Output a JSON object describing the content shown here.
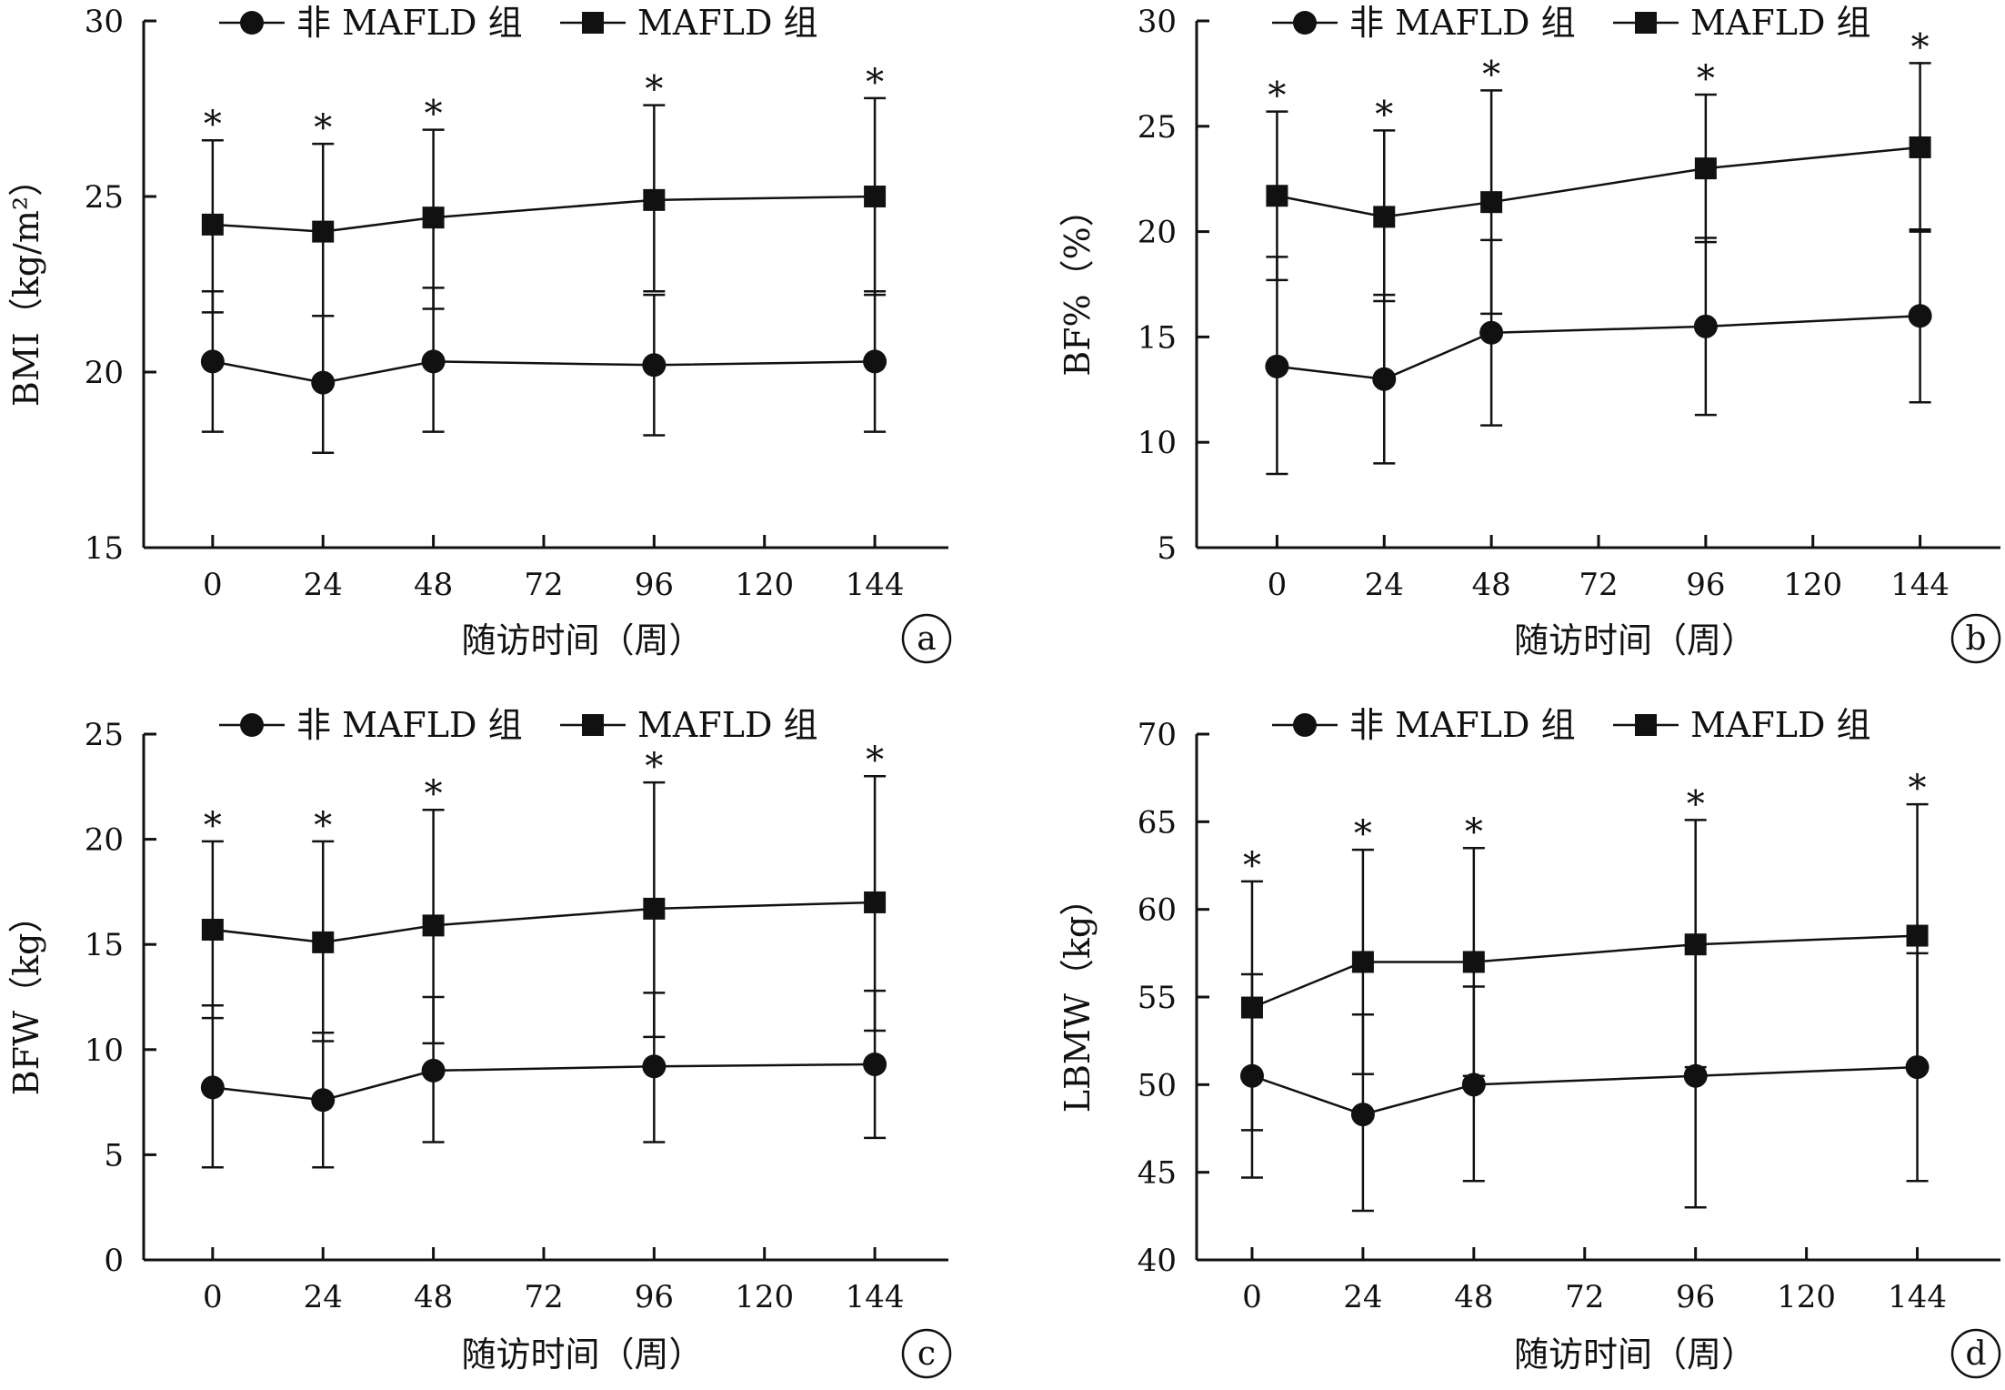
{
  "chart_data": [
    {
      "type": "line",
      "panel_label": "a",
      "xlabel": "随访时间（周）",
      "ylabel": "BMI（kg/m²）",
      "x_ticks": [
        0,
        24,
        48,
        72,
        96,
        120,
        144
      ],
      "xlim": [
        -15,
        160
      ],
      "ylim": [
        15,
        30
      ],
      "y_ticks": [
        15,
        20,
        25,
        30
      ],
      "x": [
        0,
        24,
        48,
        96,
        144
      ],
      "legend": [
        "非 MAFLD 组",
        "MAFLD 组"
      ],
      "series": [
        {
          "name": "非 MAFLD 组",
          "marker": "circle",
          "values": [
            20.3,
            19.7,
            20.3,
            20.2,
            20.3
          ],
          "upper": [
            22.3,
            21.6,
            22.4,
            22.2,
            22.3
          ],
          "lower": [
            18.3,
            17.7,
            18.3,
            18.2,
            18.3
          ]
        },
        {
          "name": "MAFLD 组",
          "marker": "square",
          "values": [
            24.2,
            24.0,
            24.4,
            24.9,
            25.0
          ],
          "upper": [
            26.6,
            26.5,
            26.9,
            27.6,
            27.8
          ],
          "lower": [
            21.7,
            21.6,
            21.8,
            22.3,
            22.2
          ]
        }
      ],
      "annotations": [
        "*",
        "*",
        "*",
        "*",
        "*"
      ]
    },
    {
      "type": "line",
      "panel_label": "b",
      "xlabel": "随访时间（周）",
      "ylabel": "BF%（%）",
      "x_ticks": [
        0,
        24,
        48,
        72,
        96,
        120,
        144
      ],
      "xlim": [
        -18,
        162
      ],
      "ylim": [
        5,
        30
      ],
      "y_ticks": [
        5,
        10,
        15,
        20,
        25,
        30
      ],
      "x": [
        0,
        24,
        48,
        96,
        144
      ],
      "legend": [
        "非 MAFLD 组",
        "MAFLD 组"
      ],
      "series": [
        {
          "name": "非 MAFLD 组",
          "marker": "circle",
          "values": [
            13.6,
            13.0,
            15.2,
            15.5,
            16.0
          ],
          "upper": [
            18.8,
            17.0,
            19.6,
            19.7,
            20.1
          ],
          "lower": [
            8.5,
            9.0,
            10.8,
            11.3,
            11.9
          ]
        },
        {
          "name": "MAFLD 组",
          "marker": "square",
          "values": [
            21.7,
            20.7,
            21.4,
            23.0,
            24.0
          ],
          "upper": [
            25.7,
            24.8,
            26.7,
            26.5,
            28.0
          ],
          "lower": [
            17.7,
            16.7,
            16.1,
            19.5,
            20.0
          ]
        }
      ],
      "annotations": [
        "*",
        "*",
        "*",
        "*",
        "*"
      ]
    },
    {
      "type": "line",
      "panel_label": "c",
      "xlabel": "随访时间（周）",
      "ylabel": "BFW（kg）",
      "x_ticks": [
        0,
        24,
        48,
        72,
        96,
        120,
        144
      ],
      "xlim": [
        -15,
        160
      ],
      "ylim": [
        0,
        25
      ],
      "y_ticks": [
        0,
        5,
        10,
        15,
        20,
        25
      ],
      "x": [
        0,
        24,
        48,
        96,
        144
      ],
      "legend": [
        "非 MAFLD 组",
        "MAFLD 组"
      ],
      "series": [
        {
          "name": "非 MAFLD 组",
          "marker": "circle",
          "values": [
            8.2,
            7.6,
            9.0,
            9.2,
            9.3
          ],
          "upper": [
            12.1,
            10.8,
            12.5,
            12.7,
            12.8
          ],
          "lower": [
            4.4,
            4.4,
            5.6,
            5.6,
            5.8
          ]
        },
        {
          "name": "MAFLD 组",
          "marker": "square",
          "values": [
            15.7,
            15.1,
            15.9,
            16.7,
            17.0
          ],
          "upper": [
            19.9,
            19.9,
            21.4,
            22.7,
            23.0
          ],
          "lower": [
            11.5,
            10.4,
            10.3,
            10.6,
            10.9
          ]
        }
      ],
      "annotations": [
        "*",
        "*",
        "*",
        "*",
        "*"
      ]
    },
    {
      "type": "line",
      "panel_label": "d",
      "xlabel": "随访时间（周）",
      "ylabel": "LBMW（kg）",
      "x_ticks": [
        0,
        24,
        48,
        72,
        96,
        120,
        144
      ],
      "xlim": [
        -12,
        162
      ],
      "ylim": [
        40,
        70
      ],
      "y_ticks": [
        40,
        45,
        50,
        55,
        60,
        65,
        70
      ],
      "x": [
        0,
        24,
        48,
        96,
        144
      ],
      "legend": [
        "非 MAFLD 组",
        "MAFLD 组"
      ],
      "series": [
        {
          "name": "非 MAFLD 组",
          "marker": "circle",
          "values": [
            50.5,
            48.3,
            50.0,
            50.5,
            51.0
          ],
          "upper": [
            56.3,
            54.0,
            55.6,
            58.0,
            57.5
          ],
          "lower": [
            44.7,
            42.8,
            44.5,
            43.0,
            44.5
          ]
        },
        {
          "name": "MAFLD 组",
          "marker": "square",
          "values": [
            54.4,
            57.0,
            57.0,
            58.0,
            58.5
          ],
          "upper": [
            61.6,
            63.4,
            63.5,
            65.1,
            66.0
          ],
          "lower": [
            47.4,
            50.6,
            50.5,
            51.0,
            51.0
          ]
        }
      ],
      "annotations": [
        "*",
        "*",
        "*",
        "*",
        "*"
      ]
    }
  ]
}
